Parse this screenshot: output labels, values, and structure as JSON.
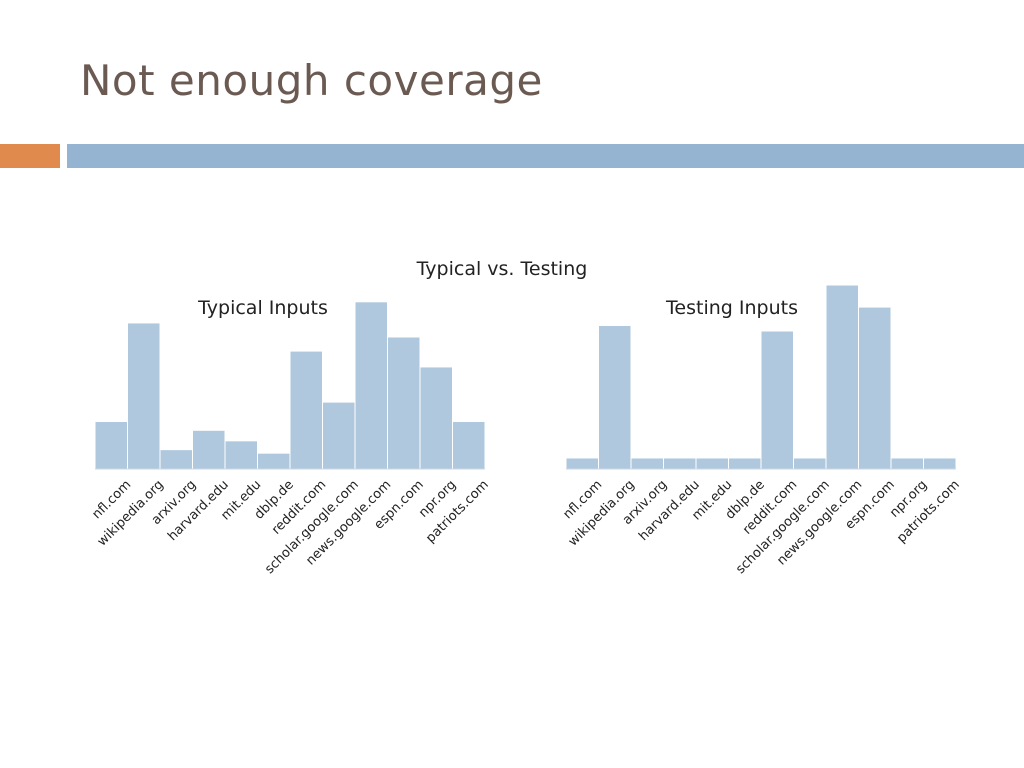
{
  "slide": {
    "title": "Not enough coverage"
  },
  "colors": {
    "bar": "#afc8dd",
    "bar_stroke": "#ffffff",
    "accent_orange": "#e08a4e",
    "accent_blue": "#95b4d2",
    "title": "#6b5a52"
  },
  "chart_data": {
    "title": "Typical vs. Testing",
    "type": "bar",
    "categories": [
      "nfl.com",
      "wikipedia.org",
      "arxiv.org",
      "harvard.edu",
      "mit.edu",
      "dblp.de",
      "reddit.com",
      "scholar.google.com",
      "news.google.com",
      "espn.com",
      "npr.org",
      "patriots.com"
    ],
    "panels": [
      {
        "title": "Typical Inputs",
        "values": [
          27,
          83,
          11,
          22,
          16,
          9,
          67,
          38,
          95,
          75,
          58,
          27
        ],
        "ylim": [
          0,
          100
        ],
        "grid": false
      },
      {
        "title": "Testing Inputs",
        "values": [
          6,
          78,
          6,
          6,
          6,
          6,
          75,
          6,
          100,
          88,
          6,
          6
        ],
        "ylim": [
          0,
          100
        ],
        "grid": false
      }
    ]
  }
}
